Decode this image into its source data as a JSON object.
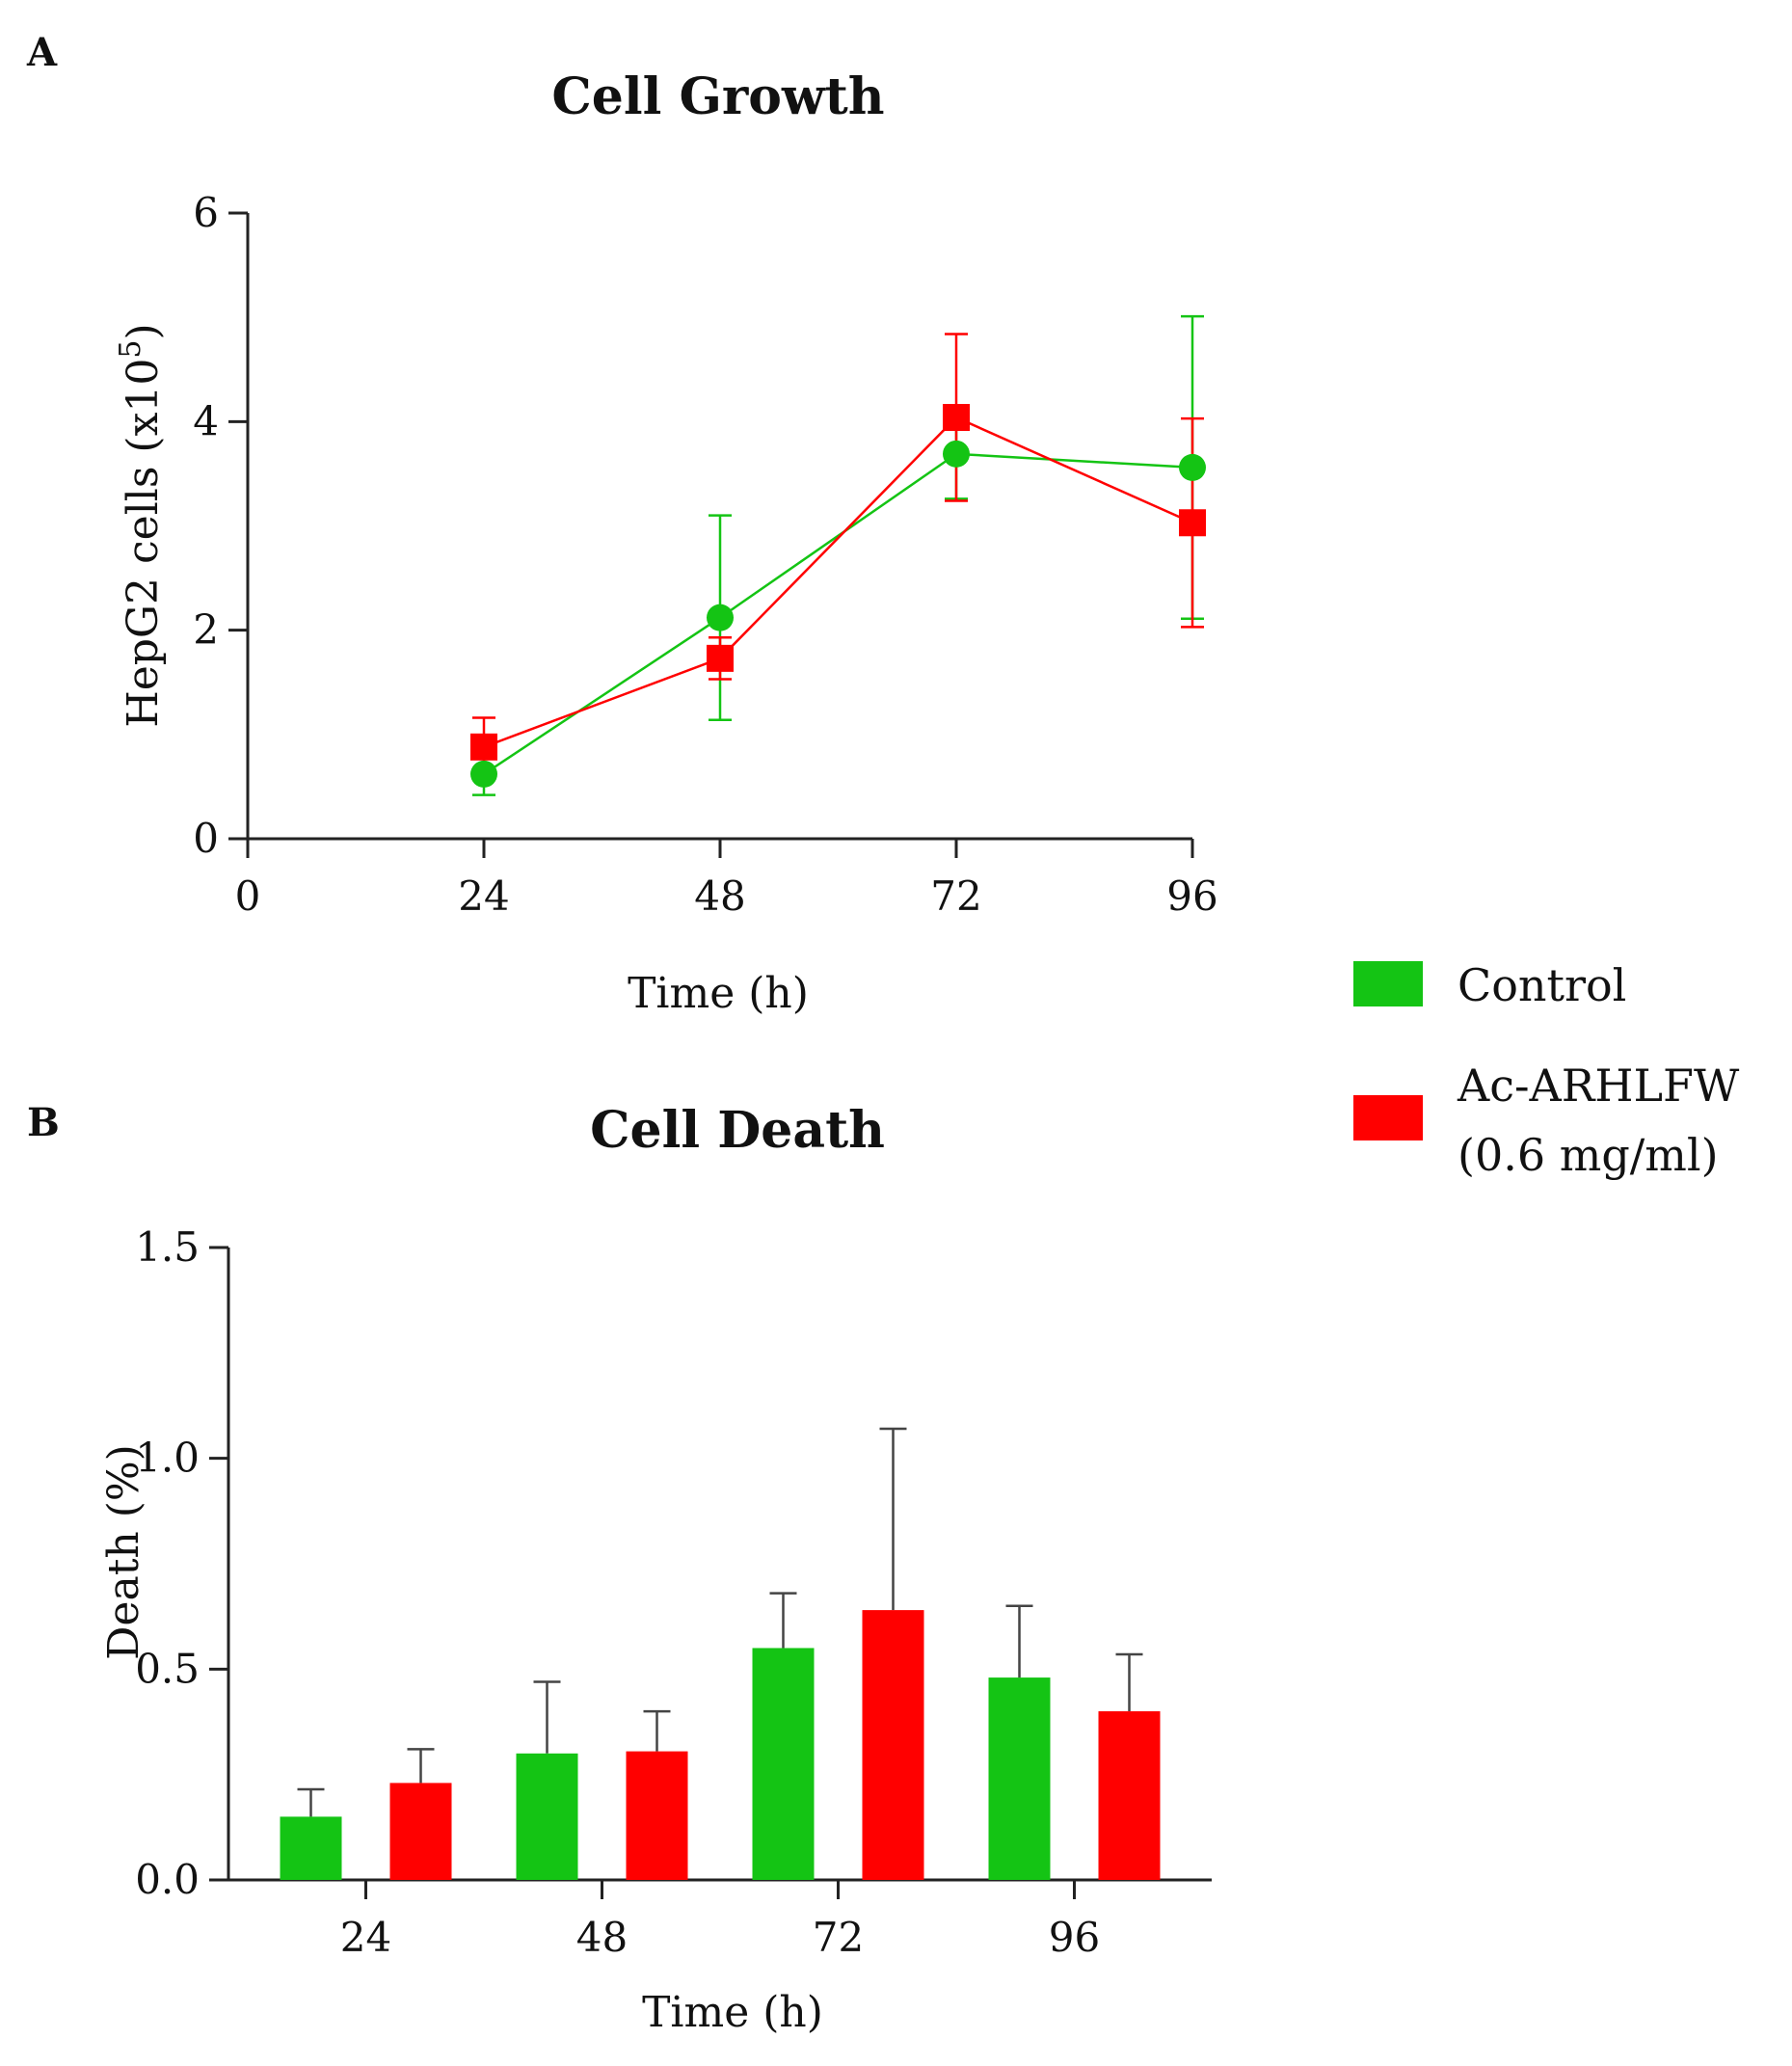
{
  "colors": {
    "control": "#14c414",
    "treatment": "#ff0000",
    "axis": "#222222",
    "error": "#444444"
  },
  "legend": {
    "items": [
      {
        "key": "control",
        "label": "Control",
        "label_lines": [
          "Control"
        ]
      },
      {
        "key": "treatment",
        "label": "Ac-ARHLFW (0.6 mg/ml)",
        "label_lines": [
          "Ac-ARHLFW",
          "(0.6 mg/ml)"
        ]
      }
    ]
  },
  "chart_data": [
    {
      "panel": "A",
      "type": "line",
      "title": "Cell Growth",
      "xlabel": "Time (h)",
      "ylabel": "HepG2 cells (x10",
      "ylabel_sup": "5",
      "ylabel_close": ")",
      "xlim": [
        0,
        96
      ],
      "ylim": [
        0,
        6
      ],
      "xticks": [
        0,
        24,
        48,
        72,
        96
      ],
      "yticks": [
        0,
        2,
        4,
        6
      ],
      "x": [
        24,
        48,
        72,
        96
      ],
      "series": [
        {
          "name": "Control",
          "key": "control",
          "marker": "circle",
          "values": [
            0.62,
            2.12,
            3.69,
            3.56
          ],
          "errors": [
            0.2,
            0.98,
            0.43,
            1.45
          ]
        },
        {
          "name": "Ac-ARHLFW (0.6 mg/ml)",
          "key": "treatment",
          "marker": "square",
          "values": [
            0.88,
            1.73,
            4.04,
            3.03
          ],
          "errors": [
            0.28,
            0.2,
            0.8,
            1.0
          ]
        }
      ]
    },
    {
      "panel": "B",
      "type": "bar",
      "title": "Cell Death",
      "xlabel": "Time (h)",
      "ylabel": "Death (%)",
      "ylim": [
        0,
        1.5
      ],
      "yticks": [
        "0.0",
        "0.5",
        "1.0",
        "1.5"
      ],
      "categories": [
        "24",
        "48",
        "72",
        "96"
      ],
      "series": [
        {
          "name": "Control",
          "key": "control",
          "values": [
            0.15,
            0.3,
            0.55,
            0.48
          ],
          "errors": [
            0.065,
            0.17,
            0.13,
            0.17
          ]
        },
        {
          "name": "Ac-ARHLFW (0.6 mg/ml)",
          "key": "treatment",
          "values": [
            0.23,
            0.305,
            0.64,
            0.4
          ],
          "errors": [
            0.08,
            0.095,
            0.43,
            0.135
          ]
        }
      ]
    }
  ]
}
